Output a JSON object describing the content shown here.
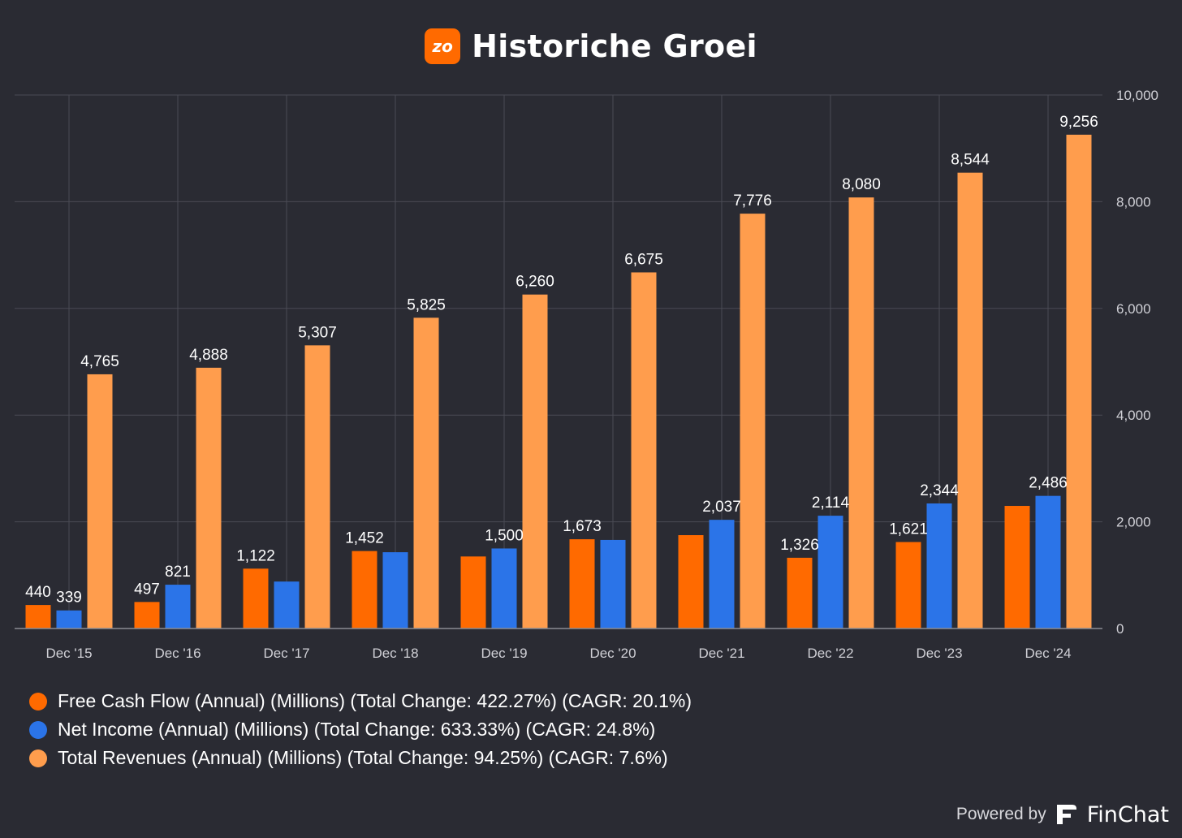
{
  "header": {
    "logo_text": "zo",
    "title": "Historiche Groei"
  },
  "colors": {
    "background": "#2a2b33",
    "grid": "#4a4b55",
    "axis_text": "#d0d0d6",
    "free_cash_flow": "#ff6a00",
    "net_income": "#2b74e8",
    "total_revenues": "#ff9d4d"
  },
  "chart_data": {
    "type": "bar",
    "title": "Historiche Groei",
    "categories": [
      "Dec '15",
      "Dec '16",
      "Dec '17",
      "Dec '18",
      "Dec '19",
      "Dec '20",
      "Dec '21",
      "Dec '22",
      "Dec '23",
      "Dec '24"
    ],
    "y_axis_position": "right",
    "ylim": [
      0,
      10000
    ],
    "yticks": [
      0,
      2000,
      4000,
      6000,
      8000,
      10000
    ],
    "ytick_labels": [
      "0",
      "2,000",
      "4,000",
      "6,000",
      "8,000",
      "10,000"
    ],
    "grid": true,
    "legend_position": "bottom-left",
    "series": [
      {
        "name": "Free Cash Flow (Annual) (Millions) (Total Change: 422.27%) (CAGR: 20.1%)",
        "color": "#ff6a00",
        "values": [
          440,
          497,
          1122,
          1452,
          1350,
          1673,
          1750,
          1326,
          1621,
          2298
        ],
        "labels": [
          "440",
          "497",
          "1,122",
          "1,452",
          "",
          "1,673",
          "",
          "1,326",
          "1,621",
          ""
        ]
      },
      {
        "name": "Net Income (Annual) (Millions) (Total Change: 633.33%) (CAGR: 24.8%)",
        "color": "#2b74e8",
        "values": [
          339,
          821,
          880,
          1430,
          1500,
          1660,
          2037,
          2114,
          2344,
          2486
        ],
        "labels": [
          "339",
          "821",
          "",
          "",
          "1,500",
          "",
          "2,037",
          "2,114",
          "2,344",
          "2,486"
        ]
      },
      {
        "name": "Total Revenues (Annual) (Millions) (Total Change: 94.25%) (CAGR: 7.6%)",
        "color": "#ff9d4d",
        "values": [
          4765,
          4888,
          5307,
          5825,
          6260,
          6675,
          7776,
          8080,
          8544,
          9256
        ],
        "labels": [
          "4,765",
          "4,888",
          "5,307",
          "5,825",
          "6,260",
          "6,675",
          "7,776",
          "8,080",
          "8,544",
          "9,256"
        ]
      }
    ]
  },
  "footer": {
    "powered_by": "Powered by",
    "brand": "FinChat"
  }
}
